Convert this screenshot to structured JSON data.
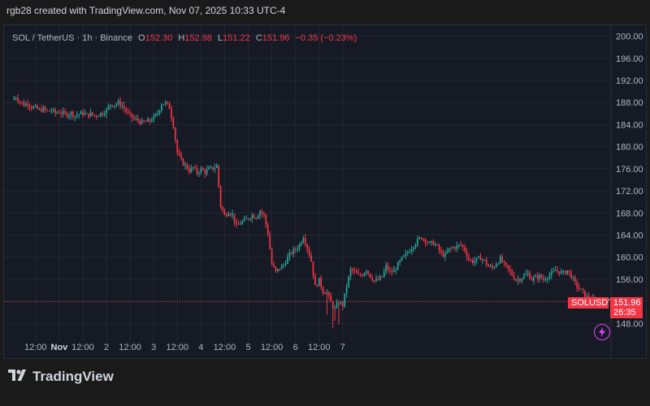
{
  "caption": "rgb28 created with TradingView.com, Nov 07, 2025 10:33 UTC-4",
  "legend": {
    "symbol": "SOL / TetherUS · 1h · Binance",
    "o_label": "O",
    "o_value": "152.30",
    "h_label": "H",
    "h_value": "152.98",
    "l_label": "L",
    "l_value": "151.22",
    "c_label": "C",
    "c_value": "151.96",
    "change": "−0.35 (−0.23%)"
  },
  "price_tag": {
    "symbol": "SOLUSDT",
    "price": "151.96",
    "countdown": "26:35"
  },
  "footer": {
    "brand": "TradingView"
  },
  "colors": {
    "up": "#26a69a",
    "down": "#f23645",
    "bg": "#161a25",
    "grid": "#232734",
    "text": "#b2b5be"
  },
  "icons": {
    "logo": "tradingview-logo-icon",
    "flash": "lightning-icon"
  },
  "chart_data": {
    "type": "candlestick",
    "y_ticks": [
      "148.00",
      "152.00",
      "156.00",
      "160.00",
      "164.00",
      "168.00",
      "172.00",
      "176.00",
      "180.00",
      "184.00",
      "188.00",
      "192.00",
      "196.00",
      "200.00"
    ],
    "ylim": [
      145.4,
      202
    ],
    "x_ticks": [
      {
        "label": "12:00",
        "bold": false,
        "hour": 12
      },
      {
        "label": "Nov",
        "bold": true,
        "hour": 24
      },
      {
        "label": "12:00",
        "bold": false,
        "hour": 36
      },
      {
        "label": "2",
        "bold": false,
        "hour": 48
      },
      {
        "label": "12:00",
        "bold": false,
        "hour": 60
      },
      {
        "label": "3",
        "bold": false,
        "hour": 72
      },
      {
        "label": "12:00",
        "bold": false,
        "hour": 84
      },
      {
        "label": "4",
        "bold": false,
        "hour": 96
      },
      {
        "label": "12:00",
        "bold": false,
        "hour": 108
      },
      {
        "label": "5",
        "bold": false,
        "hour": 120
      },
      {
        "label": "12:00",
        "bold": false,
        "hour": 132
      },
      {
        "label": "6",
        "bold": false,
        "hour": 144
      },
      {
        "label": "12:00",
        "bold": false,
        "hour": 156
      },
      {
        "label": "7",
        "bold": false,
        "hour": 168
      }
    ],
    "close_path": [
      [
        0,
        188.5
      ],
      [
        2,
        189.0
      ],
      [
        4,
        188.2
      ],
      [
        6,
        187.6
      ],
      [
        8,
        187.9
      ],
      [
        10,
        187.2
      ],
      [
        12,
        187.0
      ],
      [
        14,
        186.6
      ],
      [
        16,
        186.8
      ],
      [
        18,
        186.4
      ],
      [
        20,
        186.6
      ],
      [
        22,
        186.1
      ],
      [
        24,
        186.3
      ],
      [
        26,
        186.0
      ],
      [
        28,
        185.8
      ],
      [
        30,
        186.1
      ],
      [
        32,
        185.6
      ],
      [
        34,
        185.9
      ],
      [
        36,
        186.1
      ],
      [
        38,
        185.7
      ],
      [
        40,
        185.9
      ],
      [
        42,
        185.6
      ],
      [
        44,
        185.9
      ],
      [
        46,
        186.1
      ],
      [
        48,
        186.6
      ],
      [
        50,
        187.7
      ],
      [
        52,
        187.6
      ],
      [
        54,
        187.9
      ],
      [
        56,
        187.4
      ],
      [
        58,
        186.4
      ],
      [
        60,
        185.6
      ],
      [
        62,
        185.0
      ],
      [
        64,
        184.8
      ],
      [
        66,
        184.3
      ],
      [
        68,
        184.5
      ],
      [
        70,
        184.7
      ],
      [
        72,
        185.2
      ],
      [
        74,
        186.1
      ],
      [
        76,
        187.8
      ],
      [
        78,
        187.9
      ],
      [
        80,
        187.1
      ],
      [
        82,
        183.8
      ],
      [
        84,
        178.9
      ],
      [
        86,
        177.4
      ],
      [
        88,
        176.6
      ],
      [
        90,
        175.7
      ],
      [
        92,
        176.2
      ],
      [
        94,
        175.3
      ],
      [
        96,
        175.9
      ],
      [
        98,
        175.4
      ],
      [
        100,
        175.9
      ],
      [
        102,
        176.1
      ],
      [
        104,
        176.5
      ],
      [
        106,
        169.3
      ],
      [
        108,
        167.5
      ],
      [
        110,
        168.3
      ],
      [
        112,
        167.7
      ],
      [
        114,
        165.5
      ],
      [
        116,
        166.2
      ],
      [
        118,
        166.6
      ],
      [
        120,
        167.1
      ],
      [
        122,
        167.6
      ],
      [
        124,
        167.3
      ],
      [
        126,
        168.4
      ],
      [
        128,
        167.5
      ],
      [
        130,
        164.3
      ],
      [
        132,
        158.7
      ],
      [
        134,
        157.3
      ],
      [
        136,
        158.0
      ],
      [
        138,
        158.6
      ],
      [
        140,
        159.9
      ],
      [
        142,
        160.9
      ],
      [
        144,
        161.4
      ],
      [
        146,
        162.2
      ],
      [
        148,
        163.8
      ],
      [
        150,
        161.7
      ],
      [
        152,
        159.3
      ],
      [
        154,
        154.6
      ],
      [
        156,
        155.8
      ],
      [
        158,
        153.8
      ],
      [
        160,
        153.6
      ],
      [
        162,
        151.7
      ],
      [
        164,
        150.6
      ],
      [
        166,
        151.9
      ],
      [
        168,
        151.3
      ],
      [
        170,
        154.8
      ],
      [
        172,
        157.7
      ],
      [
        174,
        157.3
      ],
      [
        176,
        156.6
      ],
      [
        178,
        156.9
      ],
      [
        180,
        157.8
      ],
      [
        182,
        156.6
      ],
      [
        184,
        155.7
      ],
      [
        186,
        155.9
      ],
      [
        188,
        156.4
      ],
      [
        190,
        158.3
      ],
      [
        192,
        157.2
      ],
      [
        194,
        157.5
      ],
      [
        196,
        158.6
      ],
      [
        198,
        159.7
      ],
      [
        200,
        160.4
      ],
      [
        202,
        161.3
      ],
      [
        204,
        162.2
      ],
      [
        206,
        163.0
      ],
      [
        208,
        163.6
      ],
      [
        210,
        163.1
      ],
      [
        212,
        162.4
      ],
      [
        214,
        162.6
      ],
      [
        216,
        161.8
      ],
      [
        218,
        160.6
      ],
      [
        220,
        160.3
      ],
      [
        222,
        161.4
      ],
      [
        224,
        161.7
      ],
      [
        226,
        162.0
      ],
      [
        228,
        162.2
      ],
      [
        230,
        161.3
      ],
      [
        232,
        159.6
      ],
      [
        234,
        159.2
      ],
      [
        236,
        159.5
      ],
      [
        238,
        159.9
      ],
      [
        240,
        159.3
      ],
      [
        242,
        158.3
      ],
      [
        244,
        158.0
      ],
      [
        246,
        158.9
      ],
      [
        248,
        159.7
      ],
      [
        250,
        158.6
      ],
      [
        252,
        157.8
      ],
      [
        254,
        156.8
      ],
      [
        256,
        155.9
      ],
      [
        258,
        156.1
      ],
      [
        260,
        156.6
      ],
      [
        262,
        157.0
      ],
      [
        264,
        156.0
      ],
      [
        266,
        156.3
      ],
      [
        268,
        156.5
      ],
      [
        270,
        155.9
      ],
      [
        272,
        156.6
      ],
      [
        274,
        156.9
      ],
      [
        276,
        157.6
      ],
      [
        278,
        157.4
      ],
      [
        280,
        157.1
      ],
      [
        282,
        157.6
      ],
      [
        284,
        156.6
      ],
      [
        286,
        155.2
      ],
      [
        288,
        154.3
      ],
      [
        290,
        153.6
      ],
      [
        292,
        152.7
      ],
      [
        294,
        152.3
      ],
      [
        296,
        151.96
      ]
    ],
    "last_price": 151.96
  }
}
